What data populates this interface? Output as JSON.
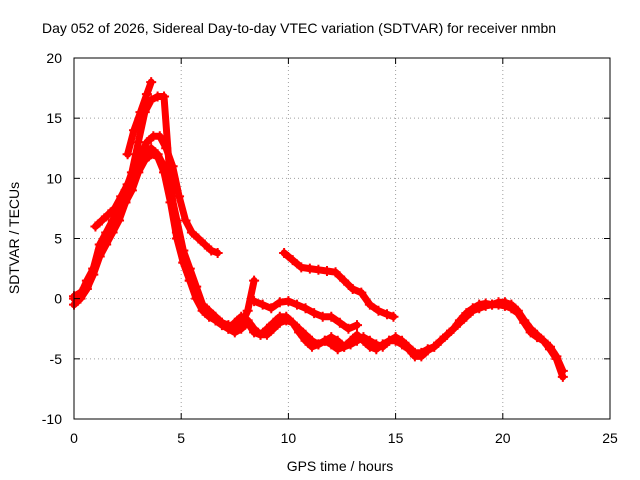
{
  "chart_data": {
    "type": "line",
    "title": "Day 052 of 2026, Sidereal Day-to-day VTEC variation (SDTVAR) for receiver nmbn",
    "xlabel": "GPS time / hours",
    "ylabel": "SDTVAR / TECUs",
    "xlim": [
      0,
      25
    ],
    "ylim": [
      -10,
      20
    ],
    "xticks": [
      "0",
      "5",
      "10",
      "15",
      "20",
      "25"
    ],
    "yticks": [
      "-10",
      "-5",
      "0",
      "5",
      "10",
      "15",
      "20"
    ],
    "grid": true,
    "marker": "plus",
    "color": "#ff0000",
    "series": [
      {
        "name": "satellite-track-1",
        "x": [
          0,
          0.3,
          0.6,
          0.9,
          1.2,
          1.5,
          1.8,
          2.1,
          2.4,
          2.7,
          3.0,
          3.3,
          3.6,
          3.9,
          4.2,
          4.5,
          4.8,
          5.1,
          5.4,
          5.7,
          6.0,
          6.3,
          6.6,
          6.9,
          7.2,
          7.5,
          7.8,
          8.1,
          8.4
        ],
        "y": [
          -0.5,
          0.0,
          0.8,
          2.0,
          3.5,
          4.5,
          5.5,
          6.5,
          8.0,
          9.0,
          10.5,
          11.5,
          12.0,
          11.8,
          10.5,
          8.0,
          5.0,
          3.0,
          1.5,
          0.0,
          -1.0,
          -1.5,
          -1.8,
          -2.0,
          -2.2,
          -2.5,
          -2.2,
          -1.0,
          1.5
        ]
      },
      {
        "name": "satellite-track-2",
        "x": [
          0,
          0.3,
          0.6,
          0.9,
          1.2,
          1.5,
          1.8,
          2.1,
          2.4,
          2.7,
          3.0,
          3.3,
          3.6,
          3.9,
          4.2,
          4.5,
          4.8,
          5.1,
          5.4,
          5.7,
          6.0,
          6.3,
          6.6,
          6.9,
          7.2,
          7.5,
          7.8,
          8.1,
          8.4,
          8.7,
          9.0,
          9.3,
          9.6,
          9.9,
          10.2,
          10.5,
          10.8,
          11.1,
          11.4,
          11.7,
          12.0,
          12.3,
          12.6,
          12.9,
          13.2,
          13.5,
          13.8,
          14.1,
          14.4,
          14.7,
          15.0,
          15.3,
          15.6,
          15.9,
          16.2,
          16.5,
          16.8,
          17.1,
          17.4,
          17.7,
          18.0,
          18.3,
          18.6,
          18.9,
          19.2,
          19.5,
          19.8,
          20.1,
          20.4,
          20.7,
          21.0,
          21.3,
          21.6,
          21.9,
          22.2,
          22.5,
          22.8
        ],
        "y": [
          0.0,
          0.3,
          1.5,
          2.5,
          4.0,
          5.0,
          6.0,
          7.0,
          8.0,
          9.5,
          11.0,
          12.0,
          12.5,
          12.0,
          11.0,
          9.0,
          6.5,
          4.0,
          2.5,
          1.0,
          -0.5,
          -1.2,
          -1.8,
          -2.2,
          -2.5,
          -2.0,
          -1.5,
          -1.8,
          -2.5,
          -3.0,
          -3.0,
          -2.5,
          -2.0,
          -1.8,
          -2.0,
          -2.5,
          -3.0,
          -3.5,
          -3.8,
          -3.5,
          -3.2,
          -3.5,
          -4.0,
          -3.8,
          -3.5,
          -3.2,
          -3.5,
          -3.8,
          -4.0,
          -3.5,
          -3.2,
          -3.5,
          -4.0,
          -4.5,
          -4.5,
          -4.2,
          -4.0,
          -3.5,
          -3.0,
          -2.5,
          -1.8,
          -1.2,
          -0.8,
          -0.5,
          -0.4,
          -0.5,
          -0.3,
          -0.3,
          -0.5,
          -1.0,
          -1.8,
          -2.5,
          -3.0,
          -3.5,
          -4.0,
          -4.8,
          -6.0
        ]
      },
      {
        "name": "satellite-track-3",
        "x": [
          0,
          0.3,
          0.6,
          0.9,
          1.2,
          1.5,
          1.8,
          2.1,
          2.4,
          2.7,
          3.0,
          3.3,
          3.6,
          3.9,
          4.2,
          4.5,
          4.8,
          5.1,
          5.4,
          5.7,
          6.0,
          6.3,
          6.6,
          6.9,
          7.2,
          7.5,
          7.8,
          8.1,
          8.4,
          8.7,
          9.0,
          9.3,
          9.6,
          9.9,
          10.2,
          10.5,
          10.8,
          11.1,
          11.4,
          11.7,
          12.0,
          12.3,
          12.6,
          12.9,
          13.2,
          13.5,
          13.8,
          14.1,
          14.4,
          14.7,
          15.0,
          15.3,
          15.6,
          15.9,
          16.2,
          16.5,
          16.8,
          17.1,
          17.4,
          17.7,
          18.0,
          18.3,
          18.6,
          18.9,
          19.2,
          19.5,
          19.8,
          20.1,
          20.4,
          20.7,
          21.0,
          21.3,
          21.6,
          21.9,
          22.2,
          22.5,
          22.8
        ],
        "y": [
          0.2,
          0.5,
          1.0,
          2.5,
          4.5,
          5.5,
          6.5,
          7.5,
          9.0,
          10.5,
          13.0,
          15.5,
          16.5,
          16.8,
          16.8,
          9.5,
          5.5,
          3.0,
          1.5,
          0.5,
          -0.5,
          -1.0,
          -1.5,
          -2.0,
          -2.5,
          -2.8,
          -2.5,
          -2.0,
          -2.8,
          -3.0,
          -2.5,
          -2.0,
          -1.5,
          -1.5,
          -2.0,
          -2.8,
          -3.5,
          -4.0,
          -3.8,
          -3.5,
          -3.8,
          -4.2,
          -4.0,
          -3.5,
          -3.0,
          -3.5,
          -4.0,
          -4.2,
          -3.8,
          -3.5,
          -3.5,
          -3.8,
          -4.2,
          -4.8,
          -4.8,
          -4.3,
          -4.0,
          -3.5,
          -3.0,
          -2.5,
          -2.0,
          -1.5,
          -1.0,
          -0.8,
          -0.6,
          -0.5,
          -0.5,
          -0.6,
          -0.8,
          -1.2,
          -2.0,
          -2.8,
          -3.2,
          -3.5,
          -4.2,
          -5.0,
          -6.5
        ]
      },
      {
        "name": "satellite-track-4",
        "x": [
          1.0,
          1.3,
          1.6,
          1.9,
          2.2,
          2.5,
          2.8,
          3.1,
          3.4,
          3.7,
          4.0,
          4.3,
          4.6,
          4.9,
          5.2,
          5.5,
          5.8,
          6.1,
          6.4,
          6.7
        ],
        "y": [
          6.0,
          6.5,
          7.0,
          7.5,
          8.5,
          9.5,
          10.5,
          12.0,
          13.0,
          13.5,
          13.5,
          12.5,
          11.0,
          8.5,
          6.5,
          5.5,
          5.0,
          4.5,
          4.0,
          3.8
        ]
      },
      {
        "name": "satellite-track-5",
        "x": [
          9.8,
          10.2,
          10.6,
          11.0,
          11.4,
          11.8,
          12.2,
          12.6,
          13.0,
          13.4,
          13.8,
          14.2,
          14.6,
          14.9
        ],
        "y": [
          3.8,
          3.2,
          2.6,
          2.5,
          2.4,
          2.3,
          2.2,
          1.5,
          0.8,
          0.5,
          -0.5,
          -1.0,
          -1.3,
          -1.5
        ]
      },
      {
        "name": "satellite-track-6",
        "x": [
          2.5,
          2.8,
          3.1,
          3.4,
          3.6
        ],
        "y": [
          12.0,
          14.0,
          15.5,
          17.0,
          18.0
        ]
      },
      {
        "name": "satellite-track-7",
        "x": [
          8.4,
          8.8,
          9.2,
          9.6,
          10.0,
          10.4,
          10.8,
          11.2,
          11.6,
          12.0,
          12.4,
          12.8,
          13.2
        ],
        "y": [
          -0.2,
          -0.5,
          -0.8,
          -0.3,
          -0.2,
          -0.5,
          -0.8,
          -1.2,
          -1.5,
          -1.5,
          -2.0,
          -2.5,
          -2.2
        ]
      }
    ]
  }
}
